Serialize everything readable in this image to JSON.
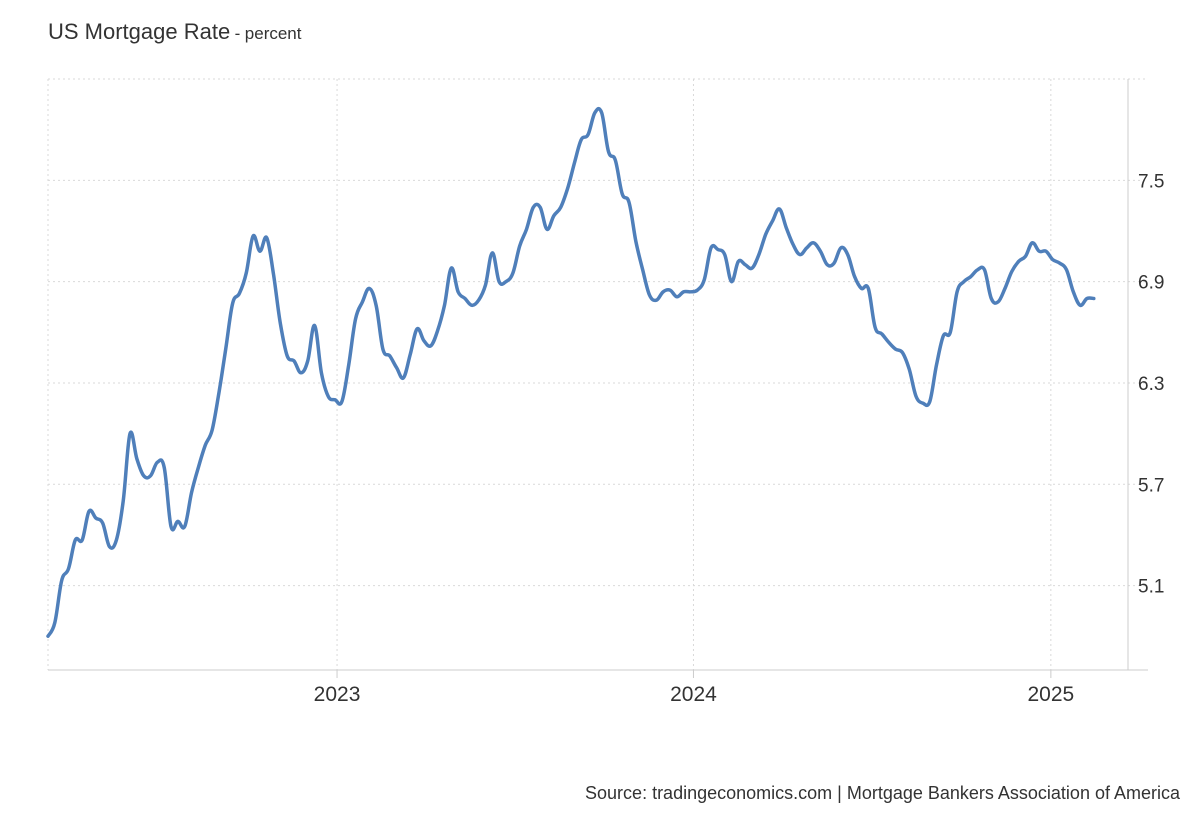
{
  "title": "US Mortgage Rate",
  "title_separator": "-",
  "unit": "percent",
  "source": "Source: tradingeconomics.com | Mortgage Bankers Association of America",
  "colors": {
    "line": "#4f7fba",
    "grid": "#d9d9d9",
    "axis": "#cccccc",
    "text": "#333333"
  },
  "chart_data": {
    "type": "line",
    "x_tick_labels": [
      "2023",
      "2024",
      "2025"
    ],
    "y_tick_labels": [
      "5.1",
      "5.7",
      "6.3",
      "6.9",
      "7.5"
    ],
    "x_range": [
      "2022-03-11",
      "2025-03-21"
    ],
    "ylim": [
      4.6,
      8.1
    ],
    "grid": true,
    "y_axis_side": "right",
    "series": [
      {
        "values": [
          [
            "2022-03-11",
            4.8
          ],
          [
            "2022-03-18",
            4.88
          ],
          [
            "2022-03-25",
            5.13
          ],
          [
            "2022-04-01",
            5.2
          ],
          [
            "2022-04-08",
            5.37
          ],
          [
            "2022-04-15",
            5.37
          ],
          [
            "2022-04-22",
            5.54
          ],
          [
            "2022-04-29",
            5.5
          ],
          [
            "2022-05-06",
            5.47
          ],
          [
            "2022-05-13",
            5.33
          ],
          [
            "2022-05-20",
            5.37
          ],
          [
            "2022-05-27",
            5.6
          ],
          [
            "2022-06-03",
            6.0
          ],
          [
            "2022-06-10",
            5.85
          ],
          [
            "2022-06-17",
            5.75
          ],
          [
            "2022-06-24",
            5.75
          ],
          [
            "2022-07-01",
            5.83
          ],
          [
            "2022-07-08",
            5.8
          ],
          [
            "2022-07-15",
            5.45
          ],
          [
            "2022-07-22",
            5.48
          ],
          [
            "2022-07-29",
            5.45
          ],
          [
            "2022-08-05",
            5.65
          ],
          [
            "2022-08-12",
            5.8
          ],
          [
            "2022-08-19",
            5.93
          ],
          [
            "2022-08-26",
            6.02
          ],
          [
            "2022-09-02",
            6.24
          ],
          [
            "2022-09-09",
            6.5
          ],
          [
            "2022-09-16",
            6.77
          ],
          [
            "2022-09-23",
            6.83
          ],
          [
            "2022-09-30",
            6.95
          ],
          [
            "2022-10-07",
            7.17
          ],
          [
            "2022-10-14",
            7.08
          ],
          [
            "2022-10-21",
            7.16
          ],
          [
            "2022-10-28",
            6.94
          ],
          [
            "2022-11-04",
            6.65
          ],
          [
            "2022-11-11",
            6.46
          ],
          [
            "2022-11-18",
            6.43
          ],
          [
            "2022-11-25",
            6.36
          ],
          [
            "2022-12-02",
            6.43
          ],
          [
            "2022-12-09",
            6.64
          ],
          [
            "2022-12-16",
            6.36
          ],
          [
            "2022-12-23",
            6.22
          ],
          [
            "2022-12-30",
            6.2
          ],
          [
            "2023-01-06",
            6.19
          ],
          [
            "2023-01-13",
            6.41
          ],
          [
            "2023-01-20",
            6.68
          ],
          [
            "2023-01-27",
            6.78
          ],
          [
            "2023-02-03",
            6.86
          ],
          [
            "2023-02-10",
            6.76
          ],
          [
            "2023-02-17",
            6.5
          ],
          [
            "2023-02-24",
            6.46
          ],
          [
            "2023-03-03",
            6.39
          ],
          [
            "2023-03-10",
            6.33
          ],
          [
            "2023-03-17",
            6.47
          ],
          [
            "2023-03-24",
            6.62
          ],
          [
            "2023-03-31",
            6.55
          ],
          [
            "2023-04-07",
            6.52
          ],
          [
            "2023-04-14",
            6.61
          ],
          [
            "2023-04-21",
            6.76
          ],
          [
            "2023-04-28",
            6.98
          ],
          [
            "2023-05-05",
            6.84
          ],
          [
            "2023-05-12",
            6.8
          ],
          [
            "2023-05-19",
            6.76
          ],
          [
            "2023-05-26",
            6.79
          ],
          [
            "2023-06-02",
            6.88
          ],
          [
            "2023-06-09",
            7.07
          ],
          [
            "2023-06-16",
            6.9
          ],
          [
            "2023-06-23",
            6.9
          ],
          [
            "2023-06-30",
            6.95
          ],
          [
            "2023-07-07",
            7.11
          ],
          [
            "2023-07-14",
            7.21
          ],
          [
            "2023-07-21",
            7.34
          ],
          [
            "2023-07-28",
            7.34
          ],
          [
            "2023-08-04",
            7.21
          ],
          [
            "2023-08-11",
            7.29
          ],
          [
            "2023-08-18",
            7.34
          ],
          [
            "2023-08-25",
            7.45
          ],
          [
            "2023-09-01",
            7.6
          ],
          [
            "2023-09-08",
            7.74
          ],
          [
            "2023-09-15",
            7.77
          ],
          [
            "2023-09-22",
            7.9
          ],
          [
            "2023-09-29",
            7.9
          ],
          [
            "2023-10-06",
            7.67
          ],
          [
            "2023-10-13",
            7.62
          ],
          [
            "2023-10-20",
            7.42
          ],
          [
            "2023-10-27",
            7.37
          ],
          [
            "2023-11-03",
            7.14
          ],
          [
            "2023-11-10",
            6.97
          ],
          [
            "2023-11-17",
            6.82
          ],
          [
            "2023-11-24",
            6.79
          ],
          [
            "2023-12-01",
            6.84
          ],
          [
            "2023-12-08",
            6.85
          ],
          [
            "2023-12-15",
            6.81
          ],
          [
            "2023-12-22",
            6.84
          ],
          [
            "2023-12-29",
            6.84
          ],
          [
            "2024-01-05",
            6.85
          ],
          [
            "2024-01-12",
            6.91
          ],
          [
            "2024-01-19",
            7.1
          ],
          [
            "2024-01-26",
            7.09
          ],
          [
            "2024-02-02",
            7.06
          ],
          [
            "2024-02-09",
            6.9
          ],
          [
            "2024-02-16",
            7.02
          ],
          [
            "2024-02-23",
            7.0
          ],
          [
            "2024-03-01",
            6.98
          ],
          [
            "2024-03-08",
            7.06
          ],
          [
            "2024-03-15",
            7.18
          ],
          [
            "2024-03-22",
            7.26
          ],
          [
            "2024-03-29",
            7.33
          ],
          [
            "2024-04-05",
            7.22
          ],
          [
            "2024-04-12",
            7.12
          ],
          [
            "2024-04-19",
            7.06
          ],
          [
            "2024-04-26",
            7.1
          ],
          [
            "2024-05-03",
            7.13
          ],
          [
            "2024-05-10",
            7.08
          ],
          [
            "2024-05-17",
            7.0
          ],
          [
            "2024-05-24",
            7.01
          ],
          [
            "2024-05-31",
            7.1
          ],
          [
            "2024-06-07",
            7.06
          ],
          [
            "2024-06-14",
            6.93
          ],
          [
            "2024-06-21",
            6.86
          ],
          [
            "2024-06-28",
            6.86
          ],
          [
            "2024-07-05",
            6.63
          ],
          [
            "2024-07-12",
            6.59
          ],
          [
            "2024-07-19",
            6.54
          ],
          [
            "2024-07-26",
            6.5
          ],
          [
            "2024-08-02",
            6.48
          ],
          [
            "2024-08-09",
            6.38
          ],
          [
            "2024-08-16",
            6.22
          ],
          [
            "2024-08-23",
            6.18
          ],
          [
            "2024-08-30",
            6.19
          ],
          [
            "2024-09-06",
            6.41
          ],
          [
            "2024-09-13",
            6.58
          ],
          [
            "2024-09-20",
            6.6
          ],
          [
            "2024-09-27",
            6.84
          ],
          [
            "2024-10-04",
            6.9
          ],
          [
            "2024-10-11",
            6.93
          ],
          [
            "2024-10-18",
            6.97
          ],
          [
            "2024-10-25",
            6.97
          ],
          [
            "2024-11-01",
            6.8
          ],
          [
            "2024-11-08",
            6.78
          ],
          [
            "2024-11-15",
            6.86
          ],
          [
            "2024-11-22",
            6.96
          ],
          [
            "2024-11-29",
            7.02
          ],
          [
            "2024-12-06",
            7.05
          ],
          [
            "2024-12-13",
            7.13
          ],
          [
            "2024-12-20",
            7.08
          ],
          [
            "2024-12-27",
            7.08
          ],
          [
            "2025-01-03",
            7.03
          ],
          [
            "2025-01-10",
            7.01
          ],
          [
            "2025-01-17",
            6.97
          ],
          [
            "2025-01-24",
            6.84
          ],
          [
            "2025-01-31",
            6.76
          ],
          [
            "2025-02-07",
            6.8
          ],
          [
            "2025-02-14",
            6.8
          ]
        ]
      }
    ]
  }
}
